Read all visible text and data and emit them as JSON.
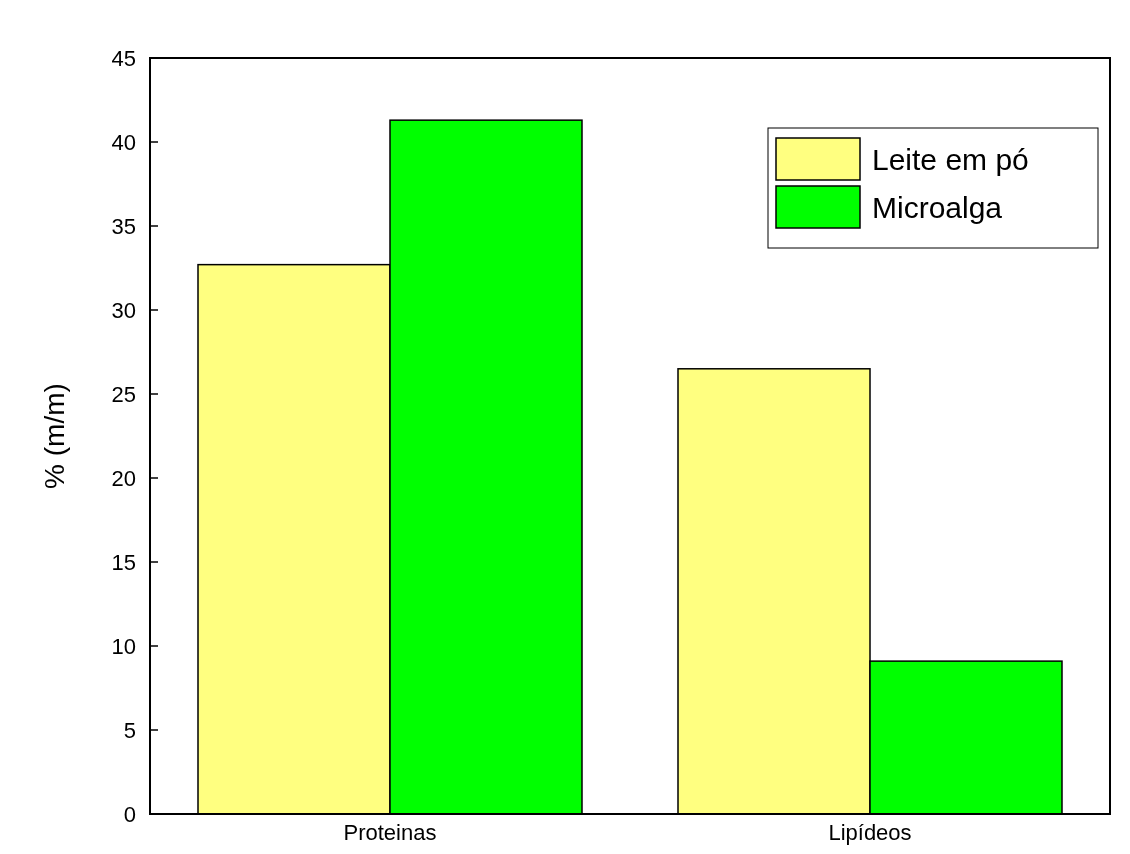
{
  "chart_data": {
    "type": "bar",
    "ylabel": "% (m/m)",
    "categories": [
      "Proteinas",
      "Lipídeos"
    ],
    "series": [
      {
        "name": "Leite em pó",
        "color": "#ffff80",
        "values": [
          32.7,
          26.5
        ]
      },
      {
        "name": "Microalga",
        "color": "#00ff00",
        "values": [
          41.3,
          9.1
        ]
      }
    ],
    "ylim": [
      0,
      45
    ],
    "yticks": [
      0,
      5,
      10,
      15,
      20,
      25,
      30,
      35,
      40,
      45
    ],
    "grid": false,
    "legend": "top right"
  }
}
